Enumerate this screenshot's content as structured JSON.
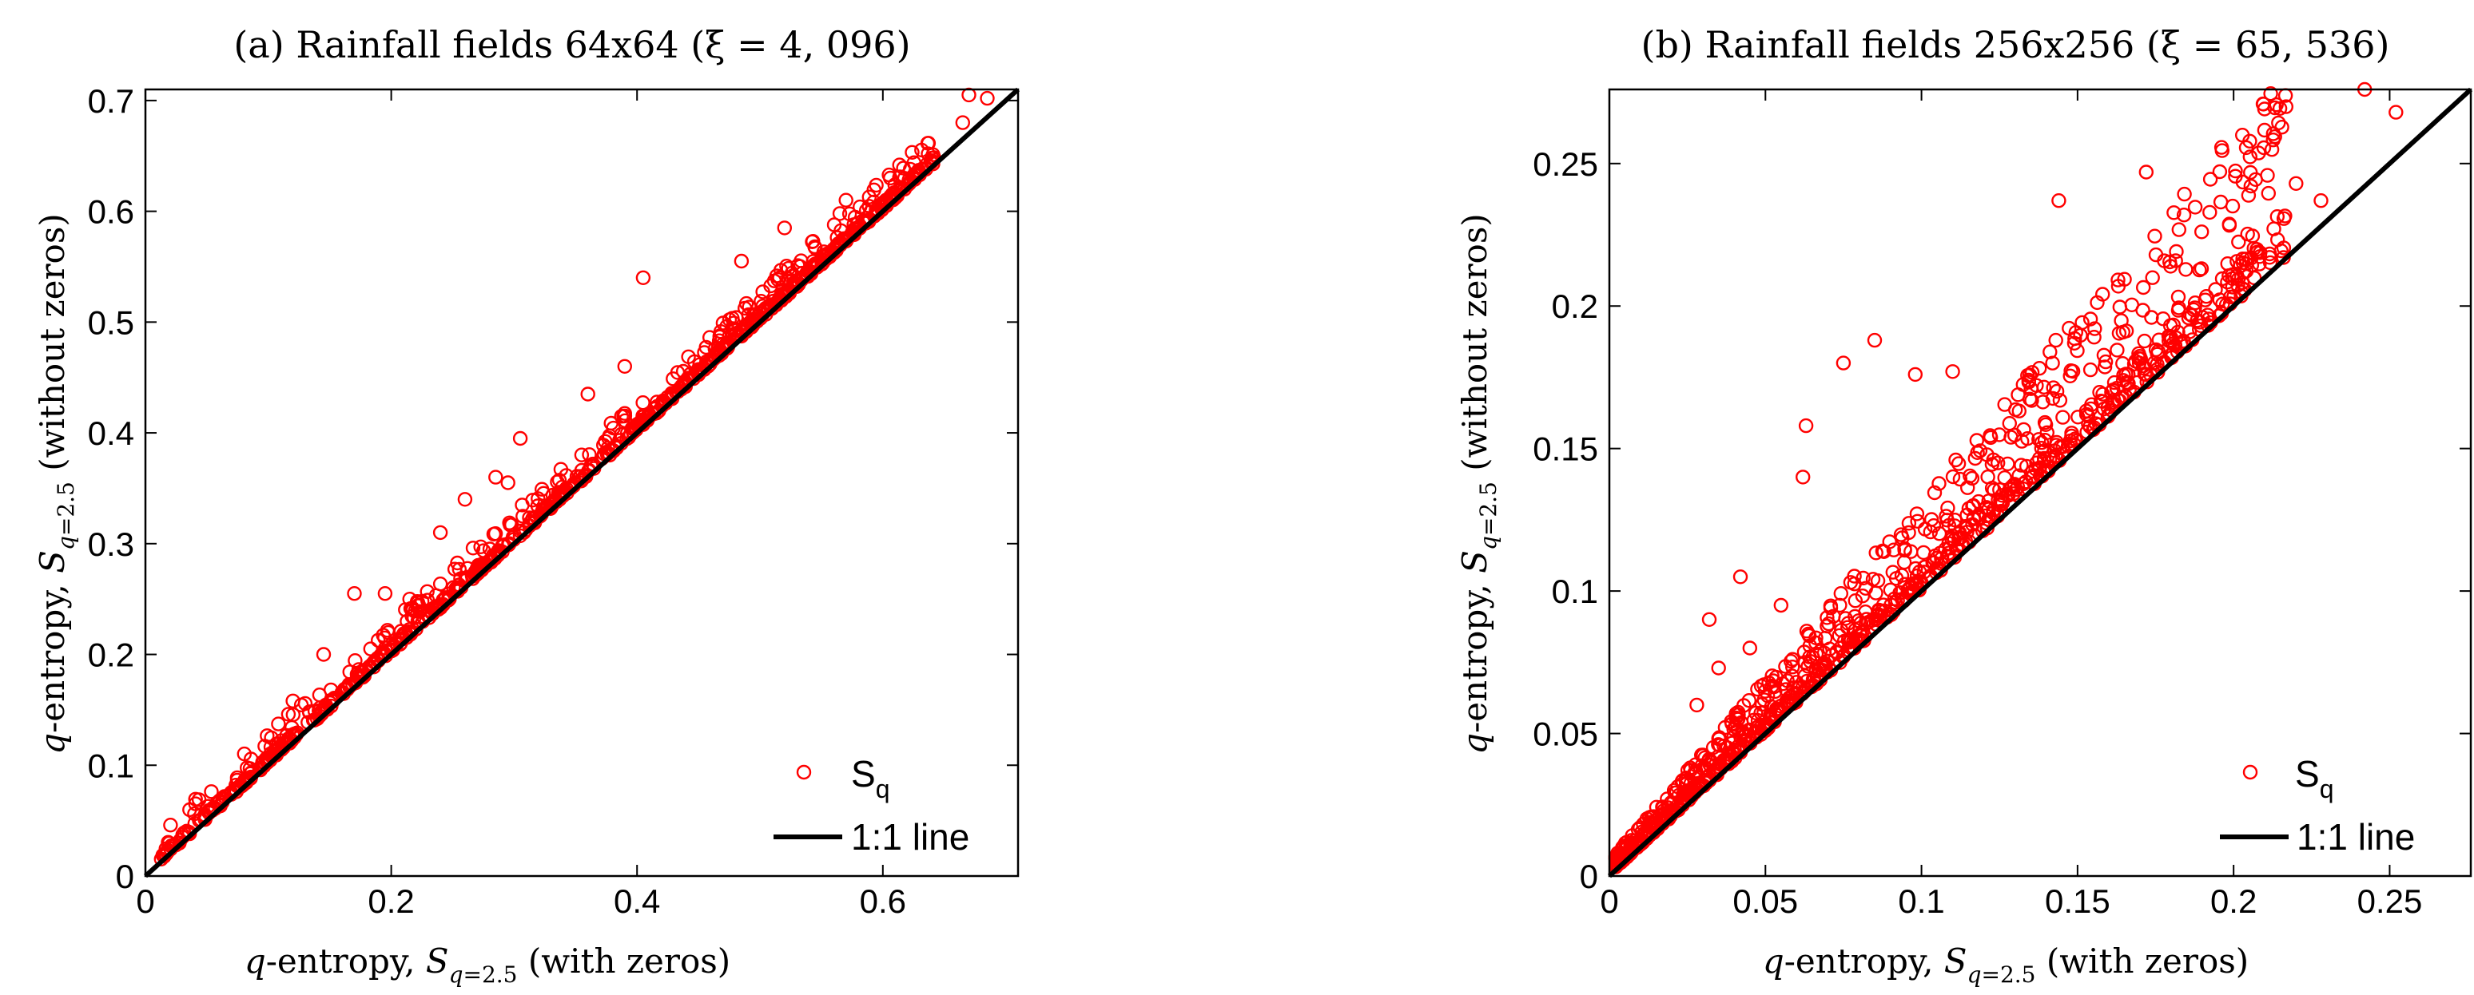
{
  "chart_data": [
    {
      "type": "scatter",
      "panel": "a",
      "title": "(a) Rainfall fields 64x64 (ξ = 4, 096)",
      "xlabel": "q-entropy, Sq=2.5 (with zeros)",
      "ylabel": "q-entropy, Sq=2.5 (without zeros)",
      "xlim": [
        0,
        0.71
      ],
      "ylim": [
        0,
        0.71
      ],
      "xticks": [
        0,
        0.2,
        0.4,
        0.6
      ],
      "xtick_labels": [
        "0",
        "0.2",
        "0.4",
        "0.6"
      ],
      "yticks": [
        0,
        0.1,
        0.2,
        0.3,
        0.4,
        0.5,
        0.6,
        0.7
      ],
      "ytick_labels": [
        "0",
        "0.1",
        "0.2",
        "0.3",
        "0.4",
        "0.5",
        "0.6",
        "0.7"
      ],
      "legend": {
        "position": "bottom-right",
        "entries": [
          {
            "label": "S",
            "sub": "q",
            "kind": "marker",
            "color": "#ff0000"
          },
          {
            "label": "1:1 line",
            "kind": "line",
            "color": "#000000"
          }
        ]
      },
      "ref_line": [
        [
          0,
          0
        ],
        [
          0.71,
          0.71
        ]
      ],
      "series": [
        {
          "name": "Sq",
          "color": "#ff0000",
          "marker": "open-circle",
          "n_points": 4096,
          "highlighted_points": [
            {
              "x": 0.67,
              "y": 0.705
            },
            {
              "x": 0.685,
              "y": 0.702
            },
            {
              "x": 0.665,
              "y": 0.68
            },
            {
              "x": 0.64,
              "y": 0.648
            },
            {
              "x": 0.615,
              "y": 0.62
            },
            {
              "x": 0.57,
              "y": 0.61
            },
            {
              "x": 0.565,
              "y": 0.598
            },
            {
              "x": 0.52,
              "y": 0.585
            },
            {
              "x": 0.485,
              "y": 0.555
            },
            {
              "x": 0.405,
              "y": 0.54
            },
            {
              "x": 0.39,
              "y": 0.46
            },
            {
              "x": 0.36,
              "y": 0.435
            },
            {
              "x": 0.305,
              "y": 0.395
            },
            {
              "x": 0.285,
              "y": 0.36
            },
            {
              "x": 0.295,
              "y": 0.355
            },
            {
              "x": 0.26,
              "y": 0.34
            },
            {
              "x": 0.24,
              "y": 0.31
            },
            {
              "x": 0.215,
              "y": 0.25
            },
            {
              "x": 0.195,
              "y": 0.255
            },
            {
              "x": 0.17,
              "y": 0.255
            },
            {
              "x": 0.145,
              "y": 0.2
            },
            {
              "x": 0.12,
              "y": 0.158
            }
          ]
        }
      ]
    },
    {
      "type": "scatter",
      "panel": "b",
      "title": "(b) Rainfall fields 256x256 (ξ = 65, 536)",
      "xlabel": "q-entropy, Sq=2.5 (with zeros)",
      "ylabel": "q-entropy, Sq=2.5 (without zeros)",
      "xlim": [
        0,
        0.276
      ],
      "ylim": [
        0,
        0.276
      ],
      "xticks": [
        0,
        0.05,
        0.1,
        0.15,
        0.2,
        0.25
      ],
      "xtick_labels": [
        "0",
        "0.05",
        "0.1",
        "0.15",
        "0.2",
        "0.25"
      ],
      "yticks": [
        0,
        0.05,
        0.1,
        0.15,
        0.2,
        0.25
      ],
      "ytick_labels": [
        "0",
        "0.05",
        "0.1",
        "0.15",
        "0.2",
        "0.25"
      ],
      "legend": {
        "position": "bottom-right",
        "entries": [
          {
            "label": "S",
            "sub": "q",
            "kind": "marker",
            "color": "#ff0000"
          },
          {
            "label": "1:1 line",
            "kind": "line",
            "color": "#000000"
          }
        ]
      },
      "ref_line": [
        [
          0,
          0
        ],
        [
          0.276,
          0.276
        ]
      ],
      "series": [
        {
          "name": "Sq",
          "color": "#ff0000",
          "marker": "open-circle",
          "n_points": 65536,
          "highlighted_points": [
            {
              "x": 0.242,
              "y": 0.276
            },
            {
              "x": 0.252,
              "y": 0.268
            },
            {
              "x": 0.228,
              "y": 0.237
            },
            {
              "x": 0.172,
              "y": 0.247
            },
            {
              "x": 0.144,
              "y": 0.237
            },
            {
              "x": 0.22,
              "y": 0.243
            },
            {
              "x": 0.085,
              "y": 0.188
            },
            {
              "x": 0.075,
              "y": 0.18
            },
            {
              "x": 0.098,
              "y": 0.176
            },
            {
              "x": 0.11,
              "y": 0.177
            },
            {
              "x": 0.063,
              "y": 0.158
            },
            {
              "x": 0.062,
              "y": 0.14
            },
            {
              "x": 0.032,
              "y": 0.09
            },
            {
              "x": 0.042,
              "y": 0.105
            },
            {
              "x": 0.035,
              "y": 0.073
            },
            {
              "x": 0.028,
              "y": 0.06
            },
            {
              "x": 0.045,
              "y": 0.08
            },
            {
              "x": 0.055,
              "y": 0.095
            }
          ]
        }
      ]
    }
  ],
  "colors": {
    "points": "#ff0000",
    "ref_line": "#000000",
    "axes": "#000000"
  }
}
